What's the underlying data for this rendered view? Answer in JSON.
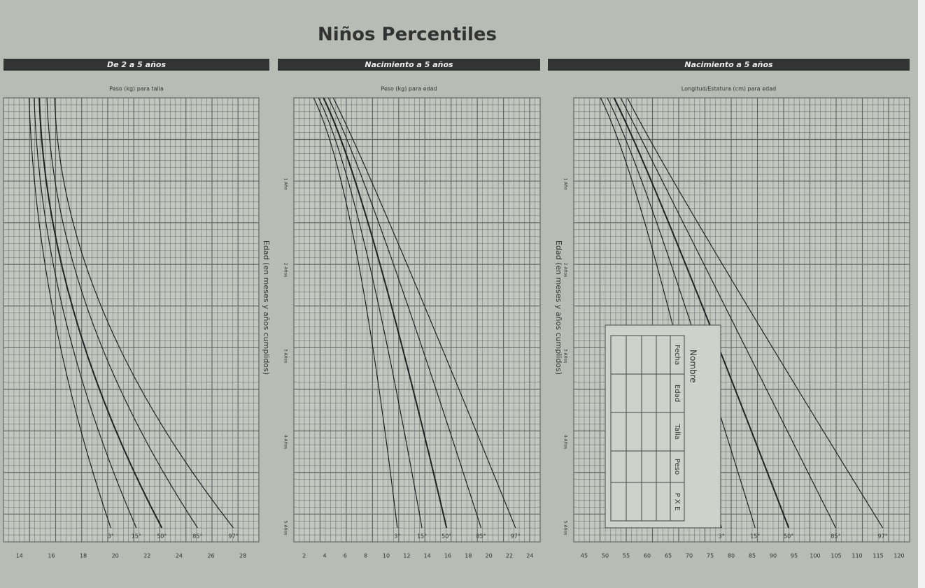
{
  "title": "Niños Percentiles",
  "side_label": "Edad (en meses y años cumplidos)",
  "age_labels": [
    "1 Año",
    "2 Años",
    "3 Años",
    "4 Años",
    "5 Años"
  ],
  "panels": [
    {
      "header": "De 2 a 5 años",
      "axis_title": "Peso (kg) para talla",
      "bottom_ticks": [
        14,
        16,
        18,
        20,
        22,
        24,
        26,
        28
      ],
      "percentiles": [
        "3°",
        "15°",
        "50°",
        "85°",
        "97°"
      ]
    },
    {
      "header": "Nacimiento a 5 años",
      "axis_title": "Peso (kg) para edad",
      "bottom_ticks": [
        2,
        4,
        6,
        8,
        10,
        12,
        14,
        16,
        18,
        20,
        22,
        24
      ],
      "percentiles": [
        "3°",
        "15°",
        "50°",
        "85°",
        "97°"
      ]
    },
    {
      "header": "Nacimiento a 5 años",
      "axis_title": "Longitud/Estatura (cm) para edad",
      "bottom_ticks": [
        45,
        50,
        55,
        60,
        65,
        70,
        75,
        80,
        85,
        90,
        95,
        100,
        105,
        110,
        115,
        120
      ],
      "percentiles": [
        "3°",
        "15°",
        "50°",
        "85°",
        "97°"
      ]
    }
  ],
  "record_table": {
    "title": "Nombre",
    "columns": [
      "Fecha",
      "Edad",
      "Talla",
      "Peso",
      "P X E"
    ]
  }
}
